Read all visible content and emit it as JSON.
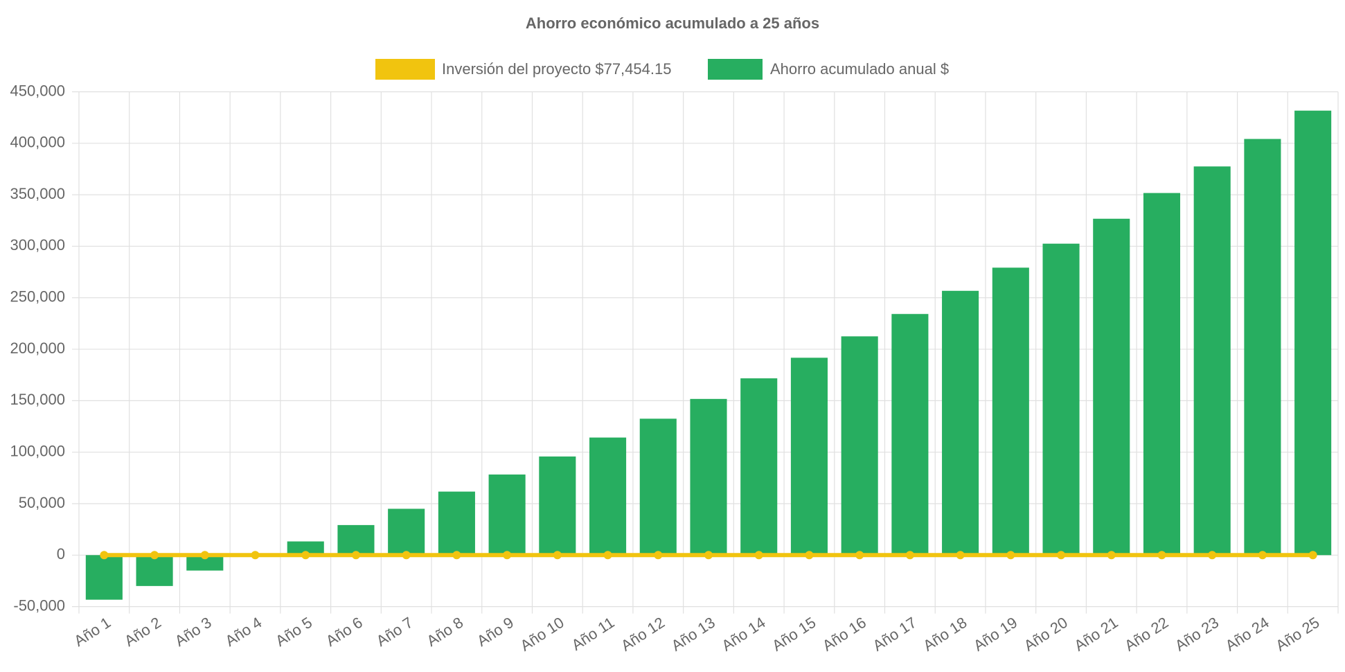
{
  "chart_data": {
    "type": "bar",
    "title": "Ahorro económico acumulado a 25 años",
    "categories": [
      "Año 1",
      "Año 2",
      "Año 3",
      "Año 4",
      "Año 5",
      "Año 6",
      "Año 7",
      "Año 8",
      "Año 9",
      "Año 10",
      "Año 11",
      "Año 12",
      "Año 13",
      "Año 14",
      "Año 15",
      "Año 16",
      "Año 17",
      "Año 18",
      "Año 19",
      "Año 20",
      "Año 21",
      "Año 22",
      "Año 23",
      "Año 24",
      "Año 25"
    ],
    "series": [
      {
        "name": "Inversión del proyecto $77,454.15",
        "type": "line",
        "color": "#f1c40f",
        "values": [
          0,
          0,
          0,
          0,
          0,
          0,
          0,
          0,
          0,
          0,
          0,
          0,
          0,
          0,
          0,
          0,
          0,
          0,
          0,
          0,
          0,
          0,
          0,
          0,
          0
        ]
      },
      {
        "name": "Ahorro acumulado anual $",
        "type": "bar",
        "color": "#27ae60",
        "values": [
          -43300,
          -30000,
          -15000,
          0,
          13300,
          29200,
          45000,
          61700,
          78300,
          95800,
          114200,
          132500,
          151700,
          171700,
          191700,
          212500,
          234200,
          256700,
          279200,
          302500,
          326700,
          351700,
          377500,
          404200,
          431700
        ]
      }
    ],
    "ylim": [
      -50000,
      450000
    ],
    "yticks": [
      {
        "value": -50000,
        "label": "-50,000"
      },
      0,
      {
        "value": 50000,
        "label": "50,000"
      },
      {
        "value": 100000,
        "label": "100,000"
      },
      {
        "value": 150000,
        "label": "150,000"
      },
      {
        "value": 200000,
        "label": "200,000"
      },
      {
        "value": 250000,
        "label": "250,000"
      },
      {
        "value": 300000,
        "label": "300,000"
      },
      {
        "value": 350000,
        "label": "350,000"
      },
      {
        "value": 400000,
        "label": "400,000"
      },
      {
        "value": 450000,
        "label": "450,000"
      }
    ],
    "grid": true
  }
}
